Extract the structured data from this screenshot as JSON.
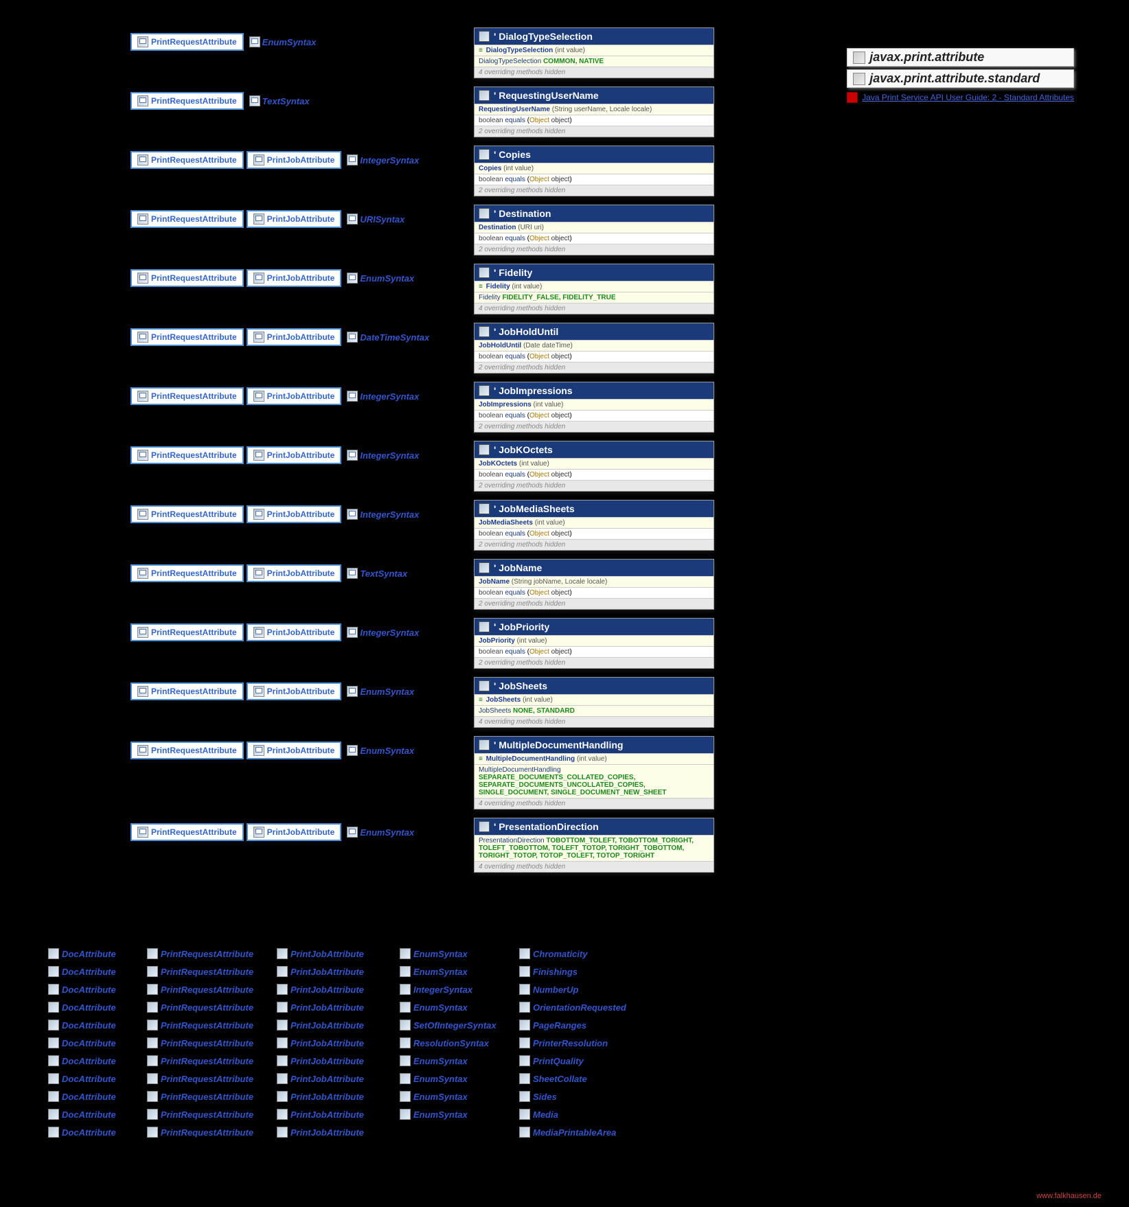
{
  "packages": [
    {
      "name": "javax.print.attribute"
    },
    {
      "name": "javax.print.attribute.standard"
    }
  ],
  "extLink": {
    "text": "Java Print Service API User Guide: 2 - Standard Attributes"
  },
  "labels": {
    "printRequestAttribute": "PrintRequestAttribute",
    "printJobAttribute": "PrintJobAttribute",
    "docAttribute": "DocAttribute"
  },
  "syntax": {
    "enum": "EnumSyntax",
    "text": "TextSyntax",
    "integer": "IntegerSyntax",
    "uri": "URISyntax",
    "datetime": "DateTimeSyntax",
    "setofinteger": "SetOfIntegerSyntax",
    "resolution": "ResolutionSyntax"
  },
  "rows": [
    {
      "badges": [
        "pra"
      ],
      "syntax": "enum",
      "cls": {
        "name": "DialogTypeSelection",
        "ctor": {
          "enum": true,
          "name": "DialogTypeSelection",
          "params": "(int value)"
        },
        "enum": {
          "name": "DialogTypeSelection",
          "vals": "COMMON, NATIVE"
        },
        "hidden": "4 overriding methods hidden"
      }
    },
    {
      "badges": [
        "pra"
      ],
      "syntax": "text",
      "cls": {
        "name": "RequestingUserName",
        "ctor": {
          "name": "RequestingUserName",
          "params": "(String userName, Locale locale)"
        },
        "method": {
          "ret": "boolean",
          "name": "equals",
          "ptype": "Object",
          "pname": "object"
        },
        "hidden": "2 overriding methods hidden"
      }
    },
    {
      "badges": [
        "pra",
        "pja"
      ],
      "syntax": "integer",
      "cls": {
        "name": "Copies",
        "ctor": {
          "name": "Copies",
          "params": "(int value)"
        },
        "method": {
          "ret": "boolean",
          "name": "equals",
          "ptype": "Object",
          "pname": "object"
        },
        "hidden": "2 overriding methods hidden"
      }
    },
    {
      "badges": [
        "pra",
        "pja"
      ],
      "syntax": "uri",
      "cls": {
        "name": "Destination",
        "ctor": {
          "name": "Destination",
          "params": "(URI uri)"
        },
        "method": {
          "ret": "boolean",
          "name": "equals",
          "ptype": "Object",
          "pname": "object"
        },
        "hidden": "2 overriding methods hidden"
      }
    },
    {
      "badges": [
        "pra",
        "pja"
      ],
      "syntax": "enum",
      "cls": {
        "name": "Fidelity",
        "ctor": {
          "enum": true,
          "name": "Fidelity",
          "params": "(int value)"
        },
        "enum": {
          "name": "Fidelity",
          "vals": "FIDELITY_FALSE, FIDELITY_TRUE"
        },
        "hidden": "4 overriding methods hidden"
      }
    },
    {
      "badges": [
        "pra",
        "pja"
      ],
      "syntax": "datetime",
      "cls": {
        "name": "JobHoldUntil",
        "ctor": {
          "name": "JobHoldUntil",
          "params": "(Date dateTime)"
        },
        "method": {
          "ret": "boolean",
          "name": "equals",
          "ptype": "Object",
          "pname": "object"
        },
        "hidden": "2 overriding methods hidden"
      }
    },
    {
      "badges": [
        "pra",
        "pja"
      ],
      "syntax": "integer",
      "cls": {
        "name": "JobImpressions",
        "ctor": {
          "name": "JobImpressions",
          "params": "(int value)"
        },
        "method": {
          "ret": "boolean",
          "name": "equals",
          "ptype": "Object",
          "pname": "object"
        },
        "hidden": "2 overriding methods hidden"
      }
    },
    {
      "badges": [
        "pra",
        "pja"
      ],
      "syntax": "integer",
      "cls": {
        "name": "JobKOctets",
        "ctor": {
          "name": "JobKOctets",
          "params": "(int value)"
        },
        "method": {
          "ret": "boolean",
          "name": "equals",
          "ptype": "Object",
          "pname": "object"
        },
        "hidden": "2 overriding methods hidden"
      }
    },
    {
      "badges": [
        "pra",
        "pja"
      ],
      "syntax": "integer",
      "cls": {
        "name": "JobMediaSheets",
        "ctor": {
          "name": "JobMediaSheets",
          "params": "(int value)"
        },
        "method": {
          "ret": "boolean",
          "name": "equals",
          "ptype": "Object",
          "pname": "object"
        },
        "hidden": "2 overriding methods hidden"
      }
    },
    {
      "badges": [
        "pra",
        "pja"
      ],
      "syntax": "text",
      "cls": {
        "name": "JobName",
        "ctor": {
          "name": "JobName",
          "params": "(String jobName, Locale locale)"
        },
        "method": {
          "ret": "boolean",
          "name": "equals",
          "ptype": "Object",
          "pname": "object"
        },
        "hidden": "2 overriding methods hidden"
      }
    },
    {
      "badges": [
        "pra",
        "pja"
      ],
      "syntax": "integer",
      "cls": {
        "name": "JobPriority",
        "ctor": {
          "name": "JobPriority",
          "params": "(int value)"
        },
        "method": {
          "ret": "boolean",
          "name": "equals",
          "ptype": "Object",
          "pname": "object"
        },
        "hidden": "2 overriding methods hidden"
      }
    },
    {
      "badges": [
        "pra",
        "pja"
      ],
      "syntax": "enum",
      "cls": {
        "name": "JobSheets",
        "ctor": {
          "enum": true,
          "name": "JobSheets",
          "params": "(int value)"
        },
        "enum": {
          "name": "JobSheets",
          "vals": "NONE, STANDARD"
        },
        "hidden": "4 overriding methods hidden"
      }
    },
    {
      "badges": [
        "pra",
        "pja"
      ],
      "syntax": "enum",
      "cls": {
        "name": "MultipleDocumentHandling",
        "ctor": {
          "enum": true,
          "name": "MultipleDocumentHandling",
          "params": "(int value)"
        },
        "enum": {
          "name": "MultipleDocumentHandling",
          "vals": "SEPARATE_DOCUMENTS_COLLATED_COPIES, SEPARATE_DOCUMENTS_UNCOLLATED_COPIES, SINGLE_DOCUMENT, SINGLE_DOCUMENT_NEW_SHEET"
        },
        "hidden": "4 overriding methods hidden"
      }
    },
    {
      "badges": [
        "pra",
        "pja"
      ],
      "syntax": "enum",
      "cls": {
        "name": "PresentationDirection",
        "ctor": null,
        "enum": {
          "name": "PresentationDirection",
          "vals": "TOBOTTOM_TOLEFT, TOBOTTOM_TORIGHT, TOLEFT_TOBOTTOM, TOLEFT_TOTOP, TORIGHT_TOBOTTOM, TORIGHT_TOTOP, TOTOP_TOLEFT, TOTOP_TORIGHT"
        },
        "hidden": "4 overriding methods hidden"
      }
    }
  ],
  "bottomRows": [
    {
      "syntax": "enum",
      "cls": "Chromaticity"
    },
    {
      "syntax": "enum",
      "cls": "Finishings"
    },
    {
      "syntax": "integer",
      "cls": "NumberUp"
    },
    {
      "syntax": "enum",
      "cls": "OrientationRequested"
    },
    {
      "syntax": "setofinteger",
      "cls": "PageRanges"
    },
    {
      "syntax": "resolution",
      "cls": "PrinterResolution"
    },
    {
      "syntax": "enum",
      "cls": "PrintQuality"
    },
    {
      "syntax": "enum",
      "cls": "SheetCollate"
    },
    {
      "syntax": "enum",
      "cls": "Sides"
    },
    {
      "syntax": "enum",
      "cls": "Media"
    },
    {
      "syntax": "",
      "cls": "MediaPrintableArea"
    }
  ],
  "footer": "www.falkhausen.de",
  "colors": {
    "headerBg": "#1a3a7a",
    "sigBg": "#fdfde8",
    "enumVal": "#1a8a1a",
    "link": "#4466dd",
    "badgeBorder": "#4a8ed8"
  }
}
